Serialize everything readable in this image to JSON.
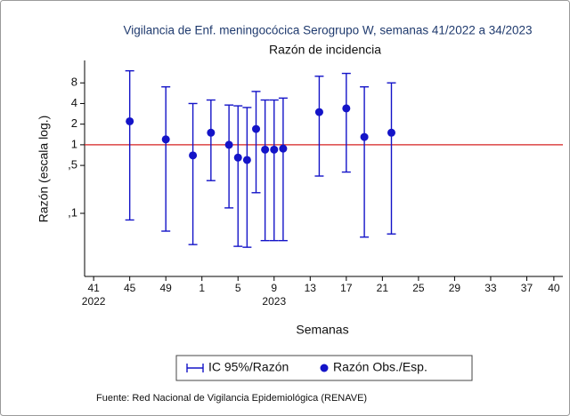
{
  "chart_data": {
    "type": "errorbar",
    "title": "Vigilancia de Enf. meningocócica Serogrupo W, semanas 41/2022 a 34/2023",
    "subtitle": "Razón de incidencia",
    "y_label": "Razón (escala log.)",
    "x_label": "Semanas",
    "source": "Fuente: Red Nacional de Vigilancia Epidemiológica (RENAVE)",
    "y_log": true,
    "xlim": [
      -1,
      52
    ],
    "ylim": [
      0.012,
      17
    ],
    "xticks": [
      {
        "value": 0,
        "label": "41"
      },
      {
        "value": 4,
        "label": "45"
      },
      {
        "value": 8,
        "label": "49"
      },
      {
        "value": 12,
        "label": "1"
      },
      {
        "value": 16,
        "label": "5"
      },
      {
        "value": 20,
        "label": "9"
      },
      {
        "value": 24,
        "label": "13"
      },
      {
        "value": 28,
        "label": "17"
      },
      {
        "value": 32,
        "label": "21"
      },
      {
        "value": 36,
        "label": "25"
      },
      {
        "value": 40,
        "label": "29"
      },
      {
        "value": 44,
        "label": "33"
      },
      {
        "value": 48,
        "label": "37"
      },
      {
        "value": 51,
        "label": "40"
      }
    ],
    "year_labels": [
      {
        "value": 0,
        "label": "2022"
      },
      {
        "value": 20,
        "label": "2023"
      }
    ],
    "yticks": [
      8,
      4,
      2,
      1,
      {
        "value": 0.5,
        "label": ",5"
      },
      {
        "value": 0.1,
        "label": ",1"
      }
    ],
    "reference_line": {
      "value": 1,
      "color": "#d62020"
    },
    "series": [
      {
        "name": "Razón Obs./Esp.",
        "error_name": "IC 95%/Razón",
        "color": "#1414c8",
        "x": [
          4,
          8,
          11,
          13,
          15,
          16,
          17,
          18,
          19,
          20,
          21,
          25,
          28,
          30,
          33
        ],
        "values": [
          2.2,
          1.2,
          0.7,
          1.5,
          1.0,
          0.65,
          0.6,
          1.7,
          0.85,
          0.85,
          0.88,
          3.0,
          3.4,
          1.3,
          1.5
        ],
        "ci_low": [
          0.08,
          0.055,
          0.035,
          0.3,
          0.12,
          0.033,
          0.032,
          0.2,
          0.04,
          0.04,
          0.04,
          0.35,
          0.4,
          0.045,
          0.05
        ],
        "ci_high": [
          12,
          7,
          4,
          4.5,
          3.8,
          3.7,
          3.5,
          6,
          4.5,
          4.5,
          4.8,
          10,
          11,
          7,
          8
        ]
      }
    ]
  }
}
